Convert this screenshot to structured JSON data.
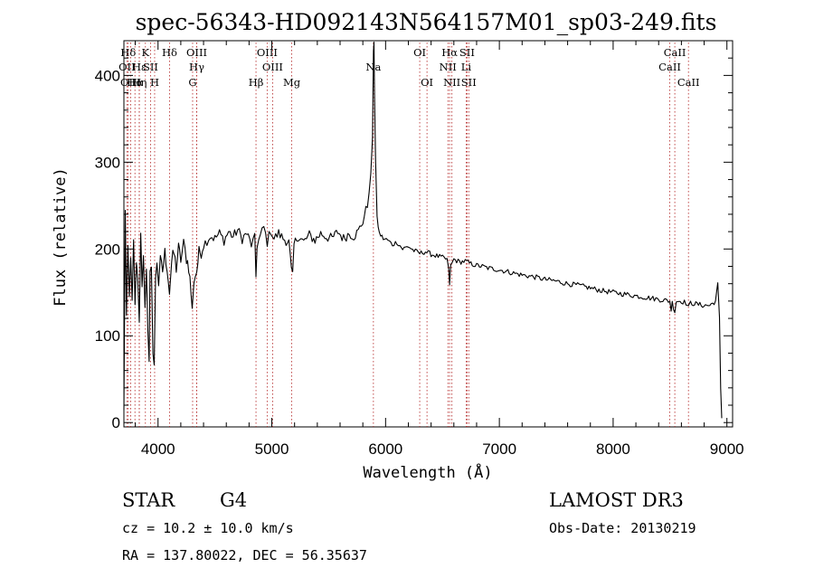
{
  "chart_data": {
    "type": "line",
    "title": "spec-56343-HD092143N564157M01_sp03-249.fits",
    "xlabel": "Wavelength (Å)",
    "ylabel": "Flux (relative)",
    "xlim": [
      3700,
      9050
    ],
    "ylim": [
      -5,
      440
    ],
    "x_ticks": [
      4000,
      5000,
      6000,
      7000,
      8000,
      9000
    ],
    "y_ticks": [
      0,
      100,
      200,
      300,
      400
    ],
    "series": [
      {
        "name": "flux",
        "points": [
          [
            3700,
            10
          ],
          [
            3712,
            250
          ],
          [
            3722,
            120
          ],
          [
            3735,
            190
          ],
          [
            3748,
            140
          ],
          [
            3760,
            185
          ],
          [
            3772,
            150
          ],
          [
            3785,
            200
          ],
          [
            3798,
            130
          ],
          [
            3810,
            175
          ],
          [
            3822,
            160
          ],
          [
            3835,
            120
          ],
          [
            3848,
            210
          ],
          [
            3860,
            165
          ],
          [
            3872,
            190
          ],
          [
            3885,
            140
          ],
          [
            3898,
            185
          ],
          [
            3910,
            100
          ],
          [
            3922,
            60
          ],
          [
            3930,
            165
          ],
          [
            3942,
            190
          ],
          [
            3955,
            80
          ],
          [
            3966,
            60
          ],
          [
            3978,
            170
          ],
          [
            3990,
            190
          ],
          [
            4005,
            160
          ],
          [
            4020,
            185
          ],
          [
            4040,
            175
          ],
          [
            4060,
            195
          ],
          [
            4080,
            180
          ],
          [
            4101,
            150
          ],
          [
            4120,
            185
          ],
          [
            4140,
            195
          ],
          [
            4160,
            178
          ],
          [
            4180,
            200
          ],
          [
            4200,
            188
          ],
          [
            4225,
            205
          ],
          [
            4250,
            190
          ],
          [
            4270,
            180
          ],
          [
            4290,
            150
          ],
          [
            4300,
            128
          ],
          [
            4315,
            165
          ],
          [
            4340,
            175
          ],
          [
            4360,
            195
          ],
          [
            4380,
            198
          ],
          [
            4400,
            205
          ],
          [
            4430,
            210
          ],
          [
            4460,
            215
          ],
          [
            4500,
            212
          ],
          [
            4540,
            218
          ],
          [
            4580,
            210
          ],
          [
            4620,
            220
          ],
          [
            4660,
            214
          ],
          [
            4700,
            222
          ],
          [
            4740,
            212
          ],
          [
            4780,
            218
          ],
          [
            4820,
            205
          ],
          [
            4850,
            212
          ],
          [
            4861,
            168
          ],
          [
            4870,
            205
          ],
          [
            4900,
            215
          ],
          [
            4930,
            225
          ],
          [
            4960,
            208
          ],
          [
            4990,
            222
          ],
          [
            5020,
            212
          ],
          [
            5060,
            218
          ],
          [
            5100,
            212
          ],
          [
            5150,
            208
          ],
          [
            5172,
            175
          ],
          [
            5183,
            168
          ],
          [
            5195,
            205
          ],
          [
            5230,
            215
          ],
          [
            5280,
            208
          ],
          [
            5330,
            216
          ],
          [
            5380,
            210
          ],
          [
            5430,
            218
          ],
          [
            5480,
            214
          ],
          [
            5530,
            212
          ],
          [
            5580,
            220
          ],
          [
            5630,
            212
          ],
          [
            5680,
            218
          ],
          [
            5720,
            215
          ],
          [
            5760,
            220
          ],
          [
            5800,
            232
          ],
          [
            5840,
            250
          ],
          [
            5870,
            285
          ],
          [
            5885,
            330
          ],
          [
            5893,
            425
          ],
          [
            5898,
            440
          ],
          [
            5903,
            380
          ],
          [
            5912,
            300
          ],
          [
            5925,
            235
          ],
          [
            5945,
            218
          ],
          [
            5980,
            212
          ],
          [
            6020,
            210
          ],
          [
            6060,
            205
          ],
          [
            6100,
            208
          ],
          [
            6150,
            200
          ],
          [
            6200,
            203
          ],
          [
            6250,
            198
          ],
          [
            6300,
            195
          ],
          [
            6350,
            197
          ],
          [
            6400,
            194
          ],
          [
            6450,
            192
          ],
          [
            6500,
            190
          ],
          [
            6540,
            188
          ],
          [
            6555,
            175
          ],
          [
            6563,
            160
          ],
          [
            6572,
            180
          ],
          [
            6600,
            188
          ],
          [
            6650,
            185
          ],
          [
            6700,
            186
          ],
          [
            6750,
            183
          ],
          [
            6800,
            181
          ],
          [
            6850,
            180
          ],
          [
            6900,
            178
          ],
          [
            7000,
            176
          ],
          [
            7100,
            173
          ],
          [
            7200,
            170
          ],
          [
            7300,
            168
          ],
          [
            7400,
            165
          ],
          [
            7500,
            163
          ],
          [
            7600,
            160
          ],
          [
            7700,
            158
          ],
          [
            7800,
            155
          ],
          [
            7900,
            152
          ],
          [
            8000,
            150
          ],
          [
            8100,
            148
          ],
          [
            8200,
            146
          ],
          [
            8300,
            144
          ],
          [
            8400,
            142
          ],
          [
            8498,
            140
          ],
          [
            8510,
            130
          ],
          [
            8520,
            138
          ],
          [
            8542,
            128
          ],
          [
            8555,
            140
          ],
          [
            8600,
            140
          ],
          [
            8640,
            138
          ],
          [
            8662,
            132
          ],
          [
            8680,
            138
          ],
          [
            8750,
            136
          ],
          [
            8800,
            135
          ],
          [
            8850,
            135
          ],
          [
            8900,
            140
          ],
          [
            8920,
            160
          ],
          [
            8935,
            120
          ],
          [
            8945,
            40
          ],
          [
            8955,
            5
          ]
        ]
      }
    ],
    "lines": [
      {
        "label": "Hδ",
        "wl": 3738,
        "row": 0
      },
      {
        "label": "OII",
        "wl": 3727,
        "row": 1
      },
      {
        "label": "OIII",
        "wl": 3760,
        "row": 2
      },
      {
        "label": "Hα",
        "wl": 3797,
        "row": 2
      },
      {
        "label": "Hε",
        "wl": 3835,
        "row": 1
      },
      {
        "label": "Hη",
        "wl": 3835,
        "row": 2
      },
      {
        "label": "K",
        "wl": 3889,
        "row": 0
      },
      {
        "label": "SII",
        "wl": 3934,
        "row": 1
      },
      {
        "label": "H",
        "wl": 3970,
        "row": 2
      },
      {
        "label": "Hδ",
        "wl": 4101,
        "row": 0
      },
      {
        "label": "OIII",
        "wl": 4340,
        "row": 0
      },
      {
        "label": "Hγ",
        "wl": 4340,
        "row": 1
      },
      {
        "label": "G",
        "wl": 4304,
        "row": 2
      },
      {
        "label": "OIII",
        "wl": 4959,
        "row": 0
      },
      {
        "label": "OIII",
        "wl": 5007,
        "row": 1
      },
      {
        "label": "Hβ",
        "wl": 4861,
        "row": 2
      },
      {
        "label": "Mg",
        "wl": 5175,
        "row": 2
      },
      {
        "label": "Na",
        "wl": 5893,
        "row": 1
      },
      {
        "label": "OI",
        "wl": 6300,
        "row": 0
      },
      {
        "label": "OI",
        "wl": 6364,
        "row": 2
      },
      {
        "label": "Hα",
        "wl": 6563,
        "row": 0
      },
      {
        "label": "SII",
        "wl": 6716,
        "row": 0
      },
      {
        "label": "NII",
        "wl": 6548,
        "row": 1
      },
      {
        "label": "Li",
        "wl": 6708,
        "row": 1
      },
      {
        "label": "NII",
        "wl": 6583,
        "row": 2
      },
      {
        "label": "SII",
        "wl": 6731,
        "row": 2
      },
      {
        "label": "CaII",
        "wl": 8542,
        "row": 0
      },
      {
        "label": "CaII",
        "wl": 8498,
        "row": 1
      },
      {
        "label": "CaII",
        "wl": 8662,
        "row": 2
      }
    ]
  },
  "info": {
    "object_type": "STAR",
    "subclass": "G4",
    "survey": "LAMOST DR3",
    "redshift": "cz = 10.2 ± 10.0 km/s",
    "obs_date": "Obs-Date: 20130219",
    "coords": "RA = 137.80022, DEC =  56.35637"
  },
  "colors": {
    "line_marker": "#b22222",
    "spectrum": "#000000"
  }
}
